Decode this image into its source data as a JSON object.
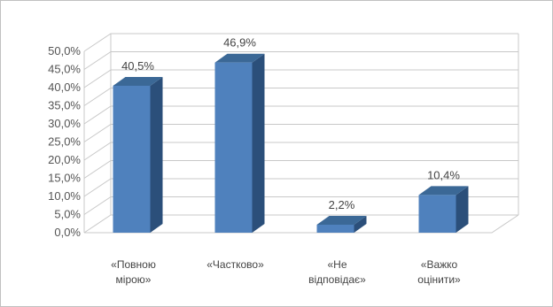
{
  "chart_data": {
    "type": "bar",
    "categories": [
      [
        "«Повною",
        "мірою»"
      ],
      [
        "«Частково»"
      ],
      [
        "«Не",
        "відповідає»"
      ],
      [
        "«Важко",
        "оцінити»"
      ]
    ],
    "values": [
      40.5,
      46.9,
      2.2,
      10.4
    ],
    "data_labels": [
      "40,5%",
      "46,9%",
      "2,2%",
      "10,4%"
    ],
    "y_ticks": [
      "0,0%",
      "5,0%",
      "10,0%",
      "15,0%",
      "20,0%",
      "25,0%",
      "30,0%",
      "35,0%",
      "40,0%",
      "45,0%",
      "50,0%"
    ],
    "ylim": [
      0,
      50
    ],
    "grid": true,
    "legend": "none",
    "colors": {
      "bar_front": "#4f81bd",
      "bar_side": "#2b4f7a",
      "bar_top": "#3b6896"
    }
  }
}
